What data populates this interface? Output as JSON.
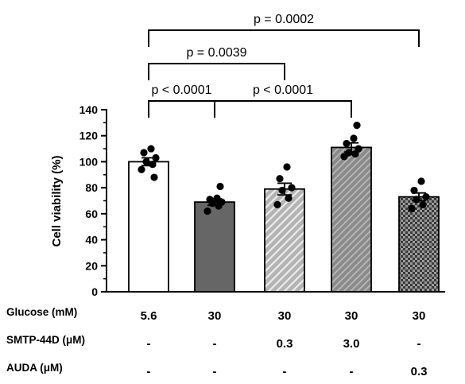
{
  "chart_data": {
    "type": "bar",
    "ylabel": "Cell viability (%)",
    "ylim": [
      0,
      140
    ],
    "yticks": [
      0,
      20,
      40,
      60,
      80,
      100,
      120,
      140
    ],
    "bars": [
      {
        "mean": 100,
        "sem": 3,
        "fill": "#ffffff",
        "pattern": "none",
        "points": [
          94,
          98,
          100,
          103,
          107,
          110,
          88
        ]
      },
      {
        "mean": 69,
        "sem": 2.5,
        "fill": "#666666",
        "pattern": "none",
        "points": [
          62,
          66,
          68,
          69,
          71,
          72,
          81
        ]
      },
      {
        "mean": 79,
        "sem": 4.5,
        "fill": "#b0b0b0",
        "pattern": "stripes-light",
        "points": [
          67,
          72,
          78,
          80,
          87,
          96
        ]
      },
      {
        "mean": 111,
        "sem": 3.5,
        "fill": "#8c8c8c",
        "pattern": "stripes-dark",
        "points": [
          104,
          106,
          107,
          110,
          114,
          118,
          128
        ]
      },
      {
        "mean": 73,
        "sem": 3,
        "fill": "#555555",
        "pattern": "checker",
        "points": [
          64,
          67,
          71,
          73,
          78,
          85
        ]
      }
    ],
    "conditions": [
      {
        "label": "Glucose (mM)",
        "values": [
          "5.6",
          "30",
          "30",
          "30",
          "30"
        ]
      },
      {
        "label": "SMTP-44D  (μM)",
        "values": [
          "-",
          "-",
          "0.3",
          "3.0",
          "-"
        ]
      },
      {
        "label": "AUDA  (μM)",
        "values": [
          "-",
          "-",
          "-",
          "-",
          "0.3"
        ]
      }
    ],
    "comparisons": [
      {
        "from": 0,
        "to": 4,
        "label": "p = 0.0002"
      },
      {
        "from": 0,
        "to": 2,
        "label": "p = 0.0039"
      },
      {
        "from": 0,
        "to": 1,
        "label": "p < 0.0001"
      },
      {
        "from": 1,
        "to": 3,
        "label": "p < 0.0001"
      }
    ]
  }
}
